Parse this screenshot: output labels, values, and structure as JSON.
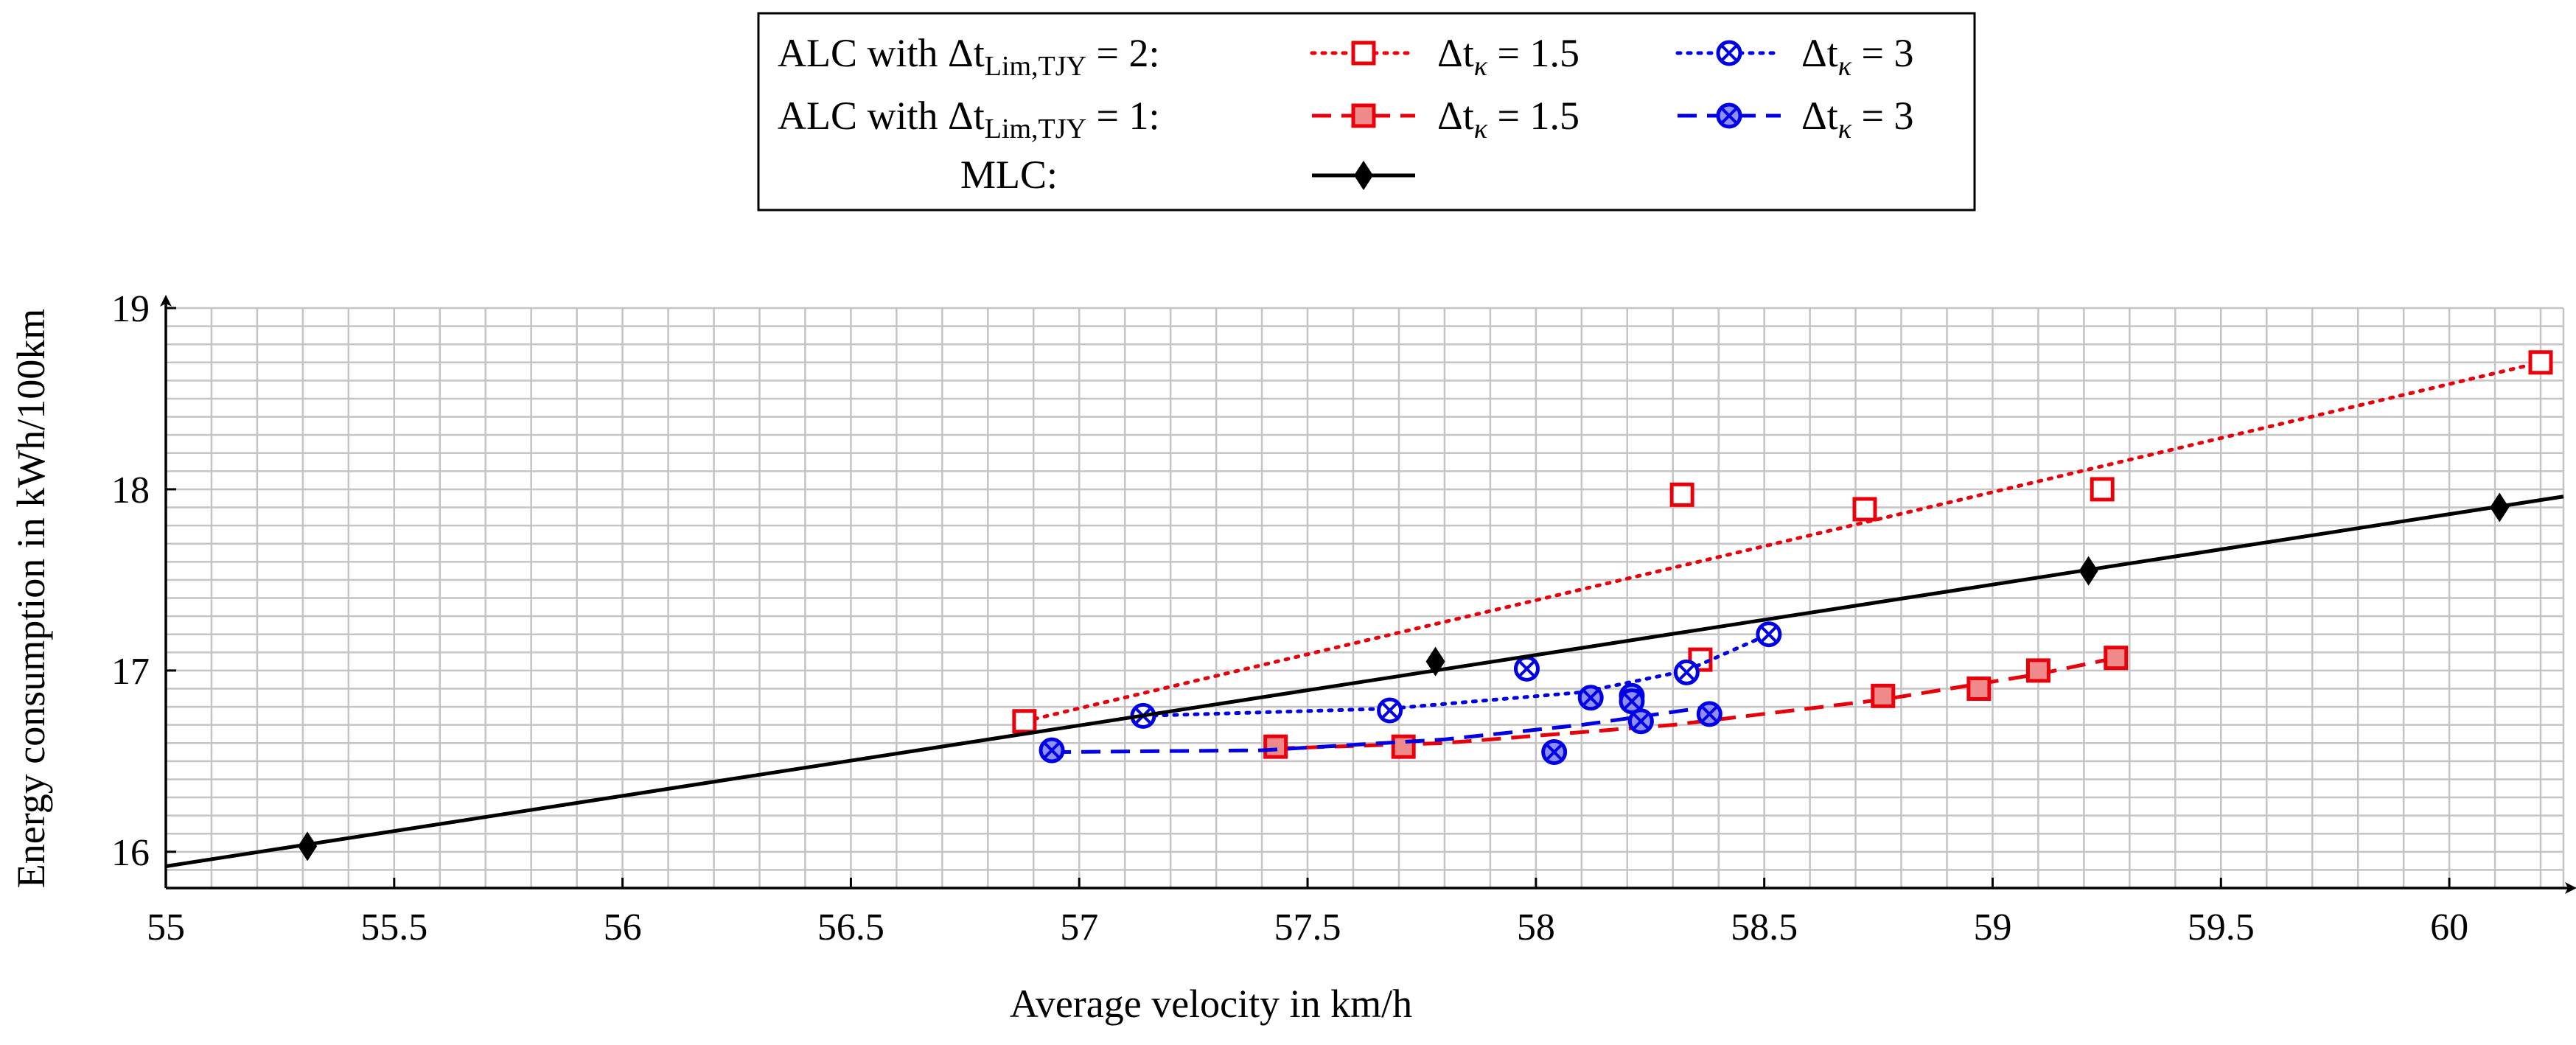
{
  "chart_data": {
    "type": "scatter",
    "xlabel": "Average velocity in km/h",
    "ylabel": "Energy consumption in kWh/100km",
    "xlim": [
      55,
      60.25
    ],
    "ylim": [
      15.8,
      19
    ],
    "xticks": [
      55,
      55.5,
      56,
      56.5,
      57,
      57.5,
      58,
      58.5,
      59,
      59.5,
      60
    ],
    "xtick_labels": [
      "55",
      "55.5",
      "56",
      "56.5",
      "57",
      "57.5",
      "58",
      "58.5",
      "59",
      "59.5",
      "60"
    ],
    "yticks": [
      16,
      17,
      18,
      19
    ],
    "ytick_labels": [
      "16",
      "17",
      "18",
      "19"
    ],
    "grid": true,
    "legend": {
      "placement": "top-center",
      "rows": [
        {
          "label_main": "ALC with Δt",
          "label_sub": "Lim,TJY",
          "label_tail": " = 2:"
        },
        {
          "label_main": "ALC with Δt",
          "label_sub": "Lim,TJY",
          "label_tail": " = 1:"
        },
        {
          "label_main": "MLC:"
        }
      ],
      "entry_texts": [
        "Δt",
        "κ",
        " = 1.5",
        " = 3"
      ]
    },
    "series": [
      {
        "name": "ALC Δt_Lim,TJY = 2, Δt_κ = 1.5",
        "color": "#e8000b",
        "marker": "square-open",
        "line": "dotted",
        "points": [
          [
            56.88,
            16.72
          ],
          [
            58.32,
            17.97
          ],
          [
            58.36,
            17.06
          ],
          [
            58.72,
            17.89
          ],
          [
            59.24,
            18.0
          ],
          [
            60.2,
            18.7
          ]
        ],
        "fit": [
          [
            56.88,
            16.72
          ],
          [
            60.2,
            18.7
          ]
        ]
      },
      {
        "name": "ALC Δt_Lim,TJY = 2, Δt_κ = 3",
        "color": "#0000e6",
        "marker": "circle-x",
        "line": "dotted",
        "points": [
          [
            57.14,
            16.75
          ],
          [
            57.68,
            16.78
          ],
          [
            57.98,
            17.01
          ],
          [
            58.33,
            16.99
          ],
          [
            58.51,
            17.2
          ]
        ],
        "fit": [
          [
            57.14,
            16.75
          ],
          [
            57.68,
            16.79
          ],
          [
            58.1,
            16.88
          ],
          [
            58.33,
            17.0
          ],
          [
            58.51,
            17.2
          ]
        ]
      },
      {
        "name": "ALC Δt_Lim,TJY = 1, Δt_κ = 1.5",
        "color": "#e8000b",
        "marker": "square-filled",
        "line": "dashed",
        "points": [
          [
            57.43,
            16.58
          ],
          [
            57.71,
            16.58
          ],
          [
            58.76,
            16.86
          ],
          [
            58.97,
            16.9
          ],
          [
            59.1,
            17.0
          ],
          [
            59.27,
            17.07
          ]
        ],
        "fit": [
          [
            57.43,
            16.57
          ],
          [
            57.8,
            16.6
          ],
          [
            58.3,
            16.7
          ],
          [
            58.76,
            16.84
          ],
          [
            59.1,
            16.98
          ],
          [
            59.27,
            17.07
          ]
        ]
      },
      {
        "name": "ALC Δt_Lim,TJY = 1, Δt_κ = 3",
        "color": "#0000e6",
        "marker": "circle-x-filled",
        "line": "dashed",
        "points": [
          [
            56.94,
            16.56
          ],
          [
            58.04,
            16.55
          ],
          [
            58.12,
            16.85
          ],
          [
            58.21,
            16.86
          ],
          [
            58.21,
            16.83
          ],
          [
            58.23,
            16.72
          ],
          [
            58.38,
            16.76
          ]
        ],
        "fit": [
          [
            56.94,
            16.55
          ],
          [
            57.4,
            16.56
          ],
          [
            57.8,
            16.62
          ],
          [
            58.1,
            16.7
          ],
          [
            58.38,
            16.8
          ]
        ]
      },
      {
        "name": "MLC",
        "color": "#000000",
        "marker": "diamond",
        "line": "solid",
        "points": [
          [
            55.31,
            16.03
          ],
          [
            57.78,
            17.05
          ],
          [
            59.21,
            17.55
          ],
          [
            60.11,
            17.9
          ]
        ],
        "fit": [
          [
            55,
            15.92
          ],
          [
            60.25,
            17.96
          ]
        ]
      }
    ]
  }
}
